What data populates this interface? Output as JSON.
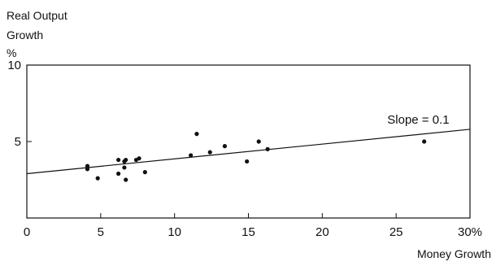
{
  "chart_data": {
    "type": "scatter",
    "ylabel_lines": [
      "Real Output",
      "Growth",
      "%"
    ],
    "xlabel": "Money Growth",
    "xlim": [
      0,
      30
    ],
    "ylim": [
      0,
      10
    ],
    "x_ticks": [
      0,
      5,
      10,
      15,
      20,
      25,
      30
    ],
    "x_tick_labels": [
      "0",
      "5",
      "10",
      "15",
      "20",
      "25",
      "30%"
    ],
    "y_ticks": [
      5,
      10
    ],
    "y_tick_labels": [
      "5",
      "10"
    ],
    "grid": false,
    "points": [
      {
        "x": 4.1,
        "y": 3.4
      },
      {
        "x": 4.1,
        "y": 3.2
      },
      {
        "x": 4.8,
        "y": 2.6
      },
      {
        "x": 6.2,
        "y": 3.8
      },
      {
        "x": 6.2,
        "y": 2.9
      },
      {
        "x": 6.6,
        "y": 3.7
      },
      {
        "x": 6.6,
        "y": 3.3
      },
      {
        "x": 6.7,
        "y": 3.8
      },
      {
        "x": 6.7,
        "y": 2.5
      },
      {
        "x": 7.4,
        "y": 3.8
      },
      {
        "x": 7.6,
        "y": 3.9
      },
      {
        "x": 8.0,
        "y": 3.0
      },
      {
        "x": 11.1,
        "y": 4.1
      },
      {
        "x": 11.5,
        "y": 5.5
      },
      {
        "x": 12.4,
        "y": 4.3
      },
      {
        "x": 13.4,
        "y": 4.7
      },
      {
        "x": 14.9,
        "y": 3.7
      },
      {
        "x": 15.7,
        "y": 5.0
      },
      {
        "x": 16.3,
        "y": 4.5
      },
      {
        "x": 26.9,
        "y": 5.0
      }
    ],
    "trend_line": {
      "x0": 0,
      "y0": 2.9,
      "x1": 30,
      "y1": 5.8
    },
    "annotation": {
      "text": "Slope = 0.1",
      "x": 24.4,
      "y": 5.85
    }
  }
}
